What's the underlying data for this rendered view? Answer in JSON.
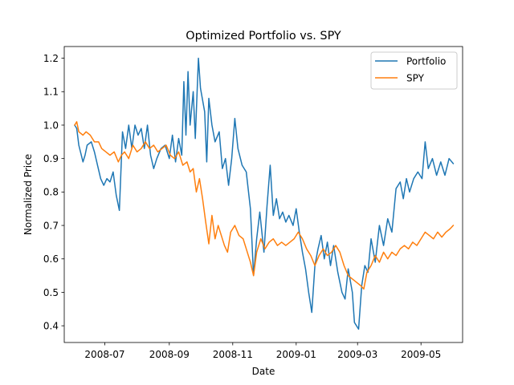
{
  "chart_data": {
    "type": "line",
    "title": "Optimized Portfolio vs. SPY",
    "xlabel": "Date",
    "ylabel": "Normalized Price",
    "xlim": [
      "2008-05-23",
      "2009-06-10"
    ],
    "ylim": [
      0.35,
      1.235
    ],
    "x_ticks": [
      "2008-07",
      "2008-09",
      "2008-11",
      "2009-01",
      "2009-03",
      "2009-05"
    ],
    "y_ticks": [
      "0.4",
      "0.5",
      "0.6",
      "0.7",
      "0.8",
      "0.9",
      "1.0",
      "1.1",
      "1.2"
    ],
    "grid": false,
    "legend_position": "upper right",
    "series": [
      {
        "name": "Portfolio",
        "color": "#1f77b4",
        "points": [
          [
            "2008-06-02",
            1.0
          ],
          [
            "2008-06-04",
            0.99
          ],
          [
            "2008-06-06",
            0.94
          ],
          [
            "2008-06-10",
            0.89
          ],
          [
            "2008-06-12",
            0.91
          ],
          [
            "2008-06-14",
            0.94
          ],
          [
            "2008-06-18",
            0.95
          ],
          [
            "2008-06-21",
            0.92
          ],
          [
            "2008-06-24",
            0.88
          ],
          [
            "2008-06-27",
            0.84
          ],
          [
            "2008-06-30",
            0.82
          ],
          [
            "2008-07-03",
            0.84
          ],
          [
            "2008-07-06",
            0.83
          ],
          [
            "2008-07-09",
            0.86
          ],
          [
            "2008-07-12",
            0.79
          ],
          [
            "2008-07-15",
            0.745
          ],
          [
            "2008-07-18",
            0.98
          ],
          [
            "2008-07-21",
            0.93
          ],
          [
            "2008-07-24",
            1.0
          ],
          [
            "2008-07-27",
            0.93
          ],
          [
            "2008-07-30",
            1.0
          ],
          [
            "2008-08-02",
            0.97
          ],
          [
            "2008-08-05",
            0.99
          ],
          [
            "2008-08-08",
            0.93
          ],
          [
            "2008-08-11",
            1.0
          ],
          [
            "2008-08-14",
            0.91
          ],
          [
            "2008-08-17",
            0.87
          ],
          [
            "2008-08-20",
            0.9
          ],
          [
            "2008-08-24",
            0.93
          ],
          [
            "2008-08-28",
            0.94
          ],
          [
            "2008-09-01",
            0.9
          ],
          [
            "2008-09-04",
            0.97
          ],
          [
            "2008-09-07",
            0.89
          ],
          [
            "2008-09-10",
            0.96
          ],
          [
            "2008-09-13",
            0.91
          ],
          [
            "2008-09-15",
            1.13
          ],
          [
            "2008-09-17",
            0.97
          ],
          [
            "2008-09-19",
            1.16
          ],
          [
            "2008-09-21",
            1.0
          ],
          [
            "2008-09-24",
            1.1
          ],
          [
            "2008-09-26",
            0.96
          ],
          [
            "2008-09-29",
            1.2
          ],
          [
            "2008-10-01",
            1.11
          ],
          [
            "2008-10-05",
            1.04
          ],
          [
            "2008-10-07",
            0.89
          ],
          [
            "2008-10-09",
            1.08
          ],
          [
            "2008-10-12",
            1.0
          ],
          [
            "2008-10-15",
            0.95
          ],
          [
            "2008-10-19",
            0.98
          ],
          [
            "2008-10-22",
            0.87
          ],
          [
            "2008-10-25",
            0.9
          ],
          [
            "2008-10-28",
            0.82
          ],
          [
            "2008-10-31",
            0.9
          ],
          [
            "2008-11-03",
            1.02
          ],
          [
            "2008-11-06",
            0.93
          ],
          [
            "2008-11-10",
            0.88
          ],
          [
            "2008-11-14",
            0.86
          ],
          [
            "2008-11-18",
            0.75
          ],
          [
            "2008-11-21",
            0.55
          ],
          [
            "2008-11-24",
            0.66
          ],
          [
            "2008-11-27",
            0.74
          ],
          [
            "2008-12-01",
            0.62
          ],
          [
            "2008-12-04",
            0.76
          ],
          [
            "2008-12-07",
            0.88
          ],
          [
            "2008-12-10",
            0.73
          ],
          [
            "2008-12-13",
            0.78
          ],
          [
            "2008-12-16",
            0.72
          ],
          [
            "2008-12-19",
            0.74
          ],
          [
            "2008-12-22",
            0.71
          ],
          [
            "2008-12-25",
            0.73
          ],
          [
            "2008-12-29",
            0.7
          ],
          [
            "2009-01-01",
            0.75
          ],
          [
            "2009-01-04",
            0.68
          ],
          [
            "2009-01-07",
            0.62
          ],
          [
            "2009-01-10",
            0.57
          ],
          [
            "2009-01-13",
            0.5
          ],
          [
            "2009-01-16",
            0.44
          ],
          [
            "2009-01-19",
            0.58
          ],
          [
            "2009-01-22",
            0.63
          ],
          [
            "2009-01-25",
            0.67
          ],
          [
            "2009-01-28",
            0.6
          ],
          [
            "2009-01-31",
            0.65
          ],
          [
            "2009-02-03",
            0.58
          ],
          [
            "2009-02-06",
            0.64
          ],
          [
            "2009-02-10",
            0.56
          ],
          [
            "2009-02-14",
            0.5
          ],
          [
            "2009-02-17",
            0.48
          ],
          [
            "2009-02-20",
            0.57
          ],
          [
            "2009-02-24",
            0.5
          ],
          [
            "2009-02-26",
            0.41
          ],
          [
            "2009-03-02",
            0.39
          ],
          [
            "2009-03-05",
            0.52
          ],
          [
            "2009-03-08",
            0.58
          ],
          [
            "2009-03-11",
            0.56
          ],
          [
            "2009-03-14",
            0.66
          ],
          [
            "2009-03-18",
            0.59
          ],
          [
            "2009-03-22",
            0.7
          ],
          [
            "2009-03-26",
            0.64
          ],
          [
            "2009-03-30",
            0.72
          ],
          [
            "2009-04-03",
            0.68
          ],
          [
            "2009-04-07",
            0.81
          ],
          [
            "2009-04-11",
            0.83
          ],
          [
            "2009-04-14",
            0.78
          ],
          [
            "2009-04-17",
            0.84
          ],
          [
            "2009-04-20",
            0.8
          ],
          [
            "2009-04-24",
            0.84
          ],
          [
            "2009-04-28",
            0.86
          ],
          [
            "2009-05-02",
            0.84
          ],
          [
            "2009-05-05",
            0.95
          ],
          [
            "2009-05-08",
            0.87
          ],
          [
            "2009-05-12",
            0.9
          ],
          [
            "2009-05-16",
            0.85
          ],
          [
            "2009-05-20",
            0.89
          ],
          [
            "2009-05-24",
            0.85
          ],
          [
            "2009-05-28",
            0.9
          ],
          [
            "2009-06-01",
            0.885
          ]
        ]
      },
      {
        "name": "SPY",
        "color": "#ff7f0e",
        "points": [
          [
            "2008-06-02",
            1.0
          ],
          [
            "2008-06-04",
            1.01
          ],
          [
            "2008-06-06",
            0.98
          ],
          [
            "2008-06-10",
            0.97
          ],
          [
            "2008-06-13",
            0.98
          ],
          [
            "2008-06-17",
            0.97
          ],
          [
            "2008-06-21",
            0.95
          ],
          [
            "2008-06-25",
            0.95
          ],
          [
            "2008-06-28",
            0.93
          ],
          [
            "2008-07-02",
            0.92
          ],
          [
            "2008-07-06",
            0.91
          ],
          [
            "2008-07-10",
            0.92
          ],
          [
            "2008-07-14",
            0.89
          ],
          [
            "2008-07-17",
            0.91
          ],
          [
            "2008-07-20",
            0.92
          ],
          [
            "2008-07-24",
            0.9
          ],
          [
            "2008-07-28",
            0.94
          ],
          [
            "2008-08-01",
            0.92
          ],
          [
            "2008-08-05",
            0.93
          ],
          [
            "2008-08-09",
            0.95
          ],
          [
            "2008-08-13",
            0.93
          ],
          [
            "2008-08-17",
            0.94
          ],
          [
            "2008-08-21",
            0.92
          ],
          [
            "2008-08-25",
            0.93
          ],
          [
            "2008-08-29",
            0.94
          ],
          [
            "2008-09-02",
            0.91
          ],
          [
            "2008-09-06",
            0.9
          ],
          [
            "2008-09-10",
            0.92
          ],
          [
            "2008-09-14",
            0.88
          ],
          [
            "2008-09-18",
            0.89
          ],
          [
            "2008-09-21",
            0.86
          ],
          [
            "2008-09-24",
            0.87
          ],
          [
            "2008-09-27",
            0.8
          ],
          [
            "2008-09-30",
            0.84
          ],
          [
            "2008-10-03",
            0.78
          ],
          [
            "2008-10-06",
            0.71
          ],
          [
            "2008-10-09",
            0.645
          ],
          [
            "2008-10-12",
            0.73
          ],
          [
            "2008-10-15",
            0.66
          ],
          [
            "2008-10-18",
            0.7
          ],
          [
            "2008-10-21",
            0.67
          ],
          [
            "2008-10-24",
            0.64
          ],
          [
            "2008-10-27",
            0.62
          ],
          [
            "2008-10-30",
            0.68
          ],
          [
            "2008-11-03",
            0.7
          ],
          [
            "2008-11-07",
            0.67
          ],
          [
            "2008-11-11",
            0.66
          ],
          [
            "2008-11-15",
            0.62
          ],
          [
            "2008-11-18",
            0.59
          ],
          [
            "2008-11-21",
            0.55
          ],
          [
            "2008-11-24",
            0.62
          ],
          [
            "2008-11-28",
            0.66
          ],
          [
            "2008-12-02",
            0.63
          ],
          [
            "2008-12-06",
            0.65
          ],
          [
            "2008-12-10",
            0.66
          ],
          [
            "2008-12-14",
            0.64
          ],
          [
            "2008-12-18",
            0.65
          ],
          [
            "2008-12-22",
            0.64
          ],
          [
            "2008-12-26",
            0.65
          ],
          [
            "2008-12-30",
            0.66
          ],
          [
            "2009-01-03",
            0.68
          ],
          [
            "2009-01-07",
            0.66
          ],
          [
            "2009-01-11",
            0.63
          ],
          [
            "2009-01-15",
            0.61
          ],
          [
            "2009-01-19",
            0.58
          ],
          [
            "2009-01-23",
            0.61
          ],
          [
            "2009-01-27",
            0.63
          ],
          [
            "2009-01-31",
            0.61
          ],
          [
            "2009-02-04",
            0.62
          ],
          [
            "2009-02-08",
            0.64
          ],
          [
            "2009-02-12",
            0.62
          ],
          [
            "2009-02-16",
            0.58
          ],
          [
            "2009-02-20",
            0.55
          ],
          [
            "2009-02-24",
            0.54
          ],
          [
            "2009-02-28",
            0.53
          ],
          [
            "2009-03-04",
            0.52
          ],
          [
            "2009-03-07",
            0.51
          ],
          [
            "2009-03-10",
            0.56
          ],
          [
            "2009-03-14",
            0.58
          ],
          [
            "2009-03-18",
            0.61
          ],
          [
            "2009-03-22",
            0.59
          ],
          [
            "2009-03-26",
            0.62
          ],
          [
            "2009-03-30",
            0.6
          ],
          [
            "2009-04-03",
            0.62
          ],
          [
            "2009-04-07",
            0.61
          ],
          [
            "2009-04-11",
            0.63
          ],
          [
            "2009-04-15",
            0.64
          ],
          [
            "2009-04-19",
            0.63
          ],
          [
            "2009-04-23",
            0.65
          ],
          [
            "2009-04-27",
            0.64
          ],
          [
            "2009-05-01",
            0.66
          ],
          [
            "2009-05-05",
            0.68
          ],
          [
            "2009-05-09",
            0.67
          ],
          [
            "2009-05-13",
            0.66
          ],
          [
            "2009-05-17",
            0.68
          ],
          [
            "2009-05-21",
            0.665
          ],
          [
            "2009-05-25",
            0.68
          ],
          [
            "2009-05-29",
            0.69
          ],
          [
            "2009-06-01",
            0.7
          ]
        ]
      }
    ]
  }
}
